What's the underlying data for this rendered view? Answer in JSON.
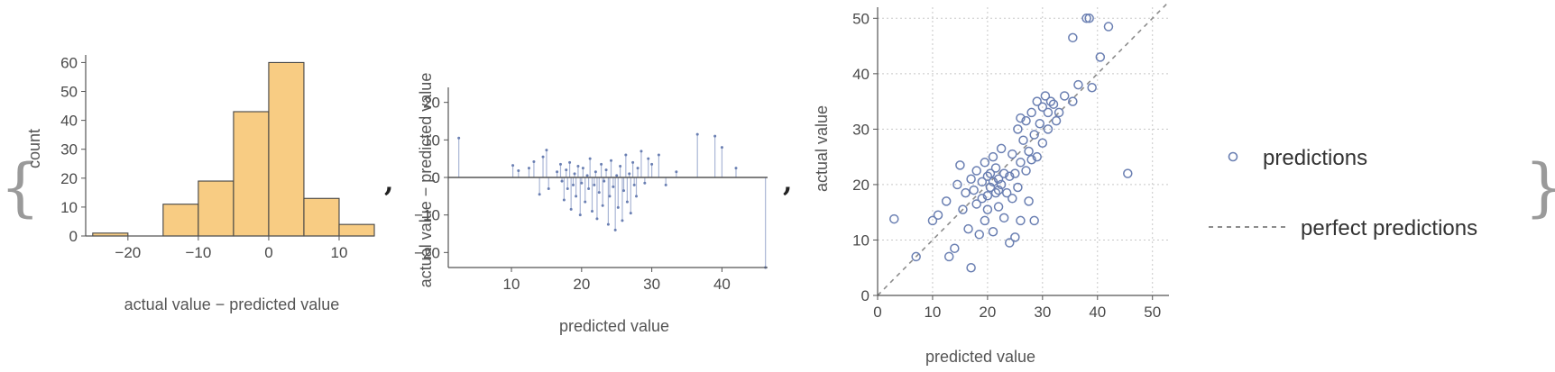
{
  "delimiters": {
    "open": "{",
    "close": "}",
    "comma": ","
  },
  "colors": {
    "bar_fill": "#f8cc83",
    "bar_stroke": "#444444",
    "point": "#6a7fb2",
    "stem": "#aab6d6",
    "axis": "#555555",
    "grid": "#c8c8c8",
    "diagonal": "#8c8c8c"
  },
  "chart_data": [
    {
      "type": "bar",
      "chart_kind": "histogram",
      "xlabel": "actual value − predicted value",
      "ylabel": "count",
      "bin_edges": [
        -25,
        -20,
        -15,
        -10,
        -5,
        0,
        5,
        10,
        15
      ],
      "values": [
        1,
        0,
        11,
        19,
        43,
        60,
        13,
        4
      ],
      "xlim": [
        -26,
        15
      ],
      "ylim": [
        0,
        62
      ],
      "xticks": [
        -20,
        -10,
        0,
        10
      ],
      "yticks": [
        0,
        10,
        20,
        30,
        40,
        50,
        60
      ],
      "grid": false
    },
    {
      "type": "scatter",
      "chart_kind": "residual stem plot",
      "xlabel": "predicted value",
      "ylabel": "actual value − predicted value",
      "xlim": [
        1,
        46.5
      ],
      "ylim": [
        -24,
        24
      ],
      "xticks": [
        10,
        20,
        30,
        40
      ],
      "yticks": [
        -20,
        -10,
        0,
        10,
        20
      ],
      "grid": false,
      "points": [
        [
          2.5,
          10.5
        ],
        [
          10.2,
          3.2
        ],
        [
          11.0,
          1.8
        ],
        [
          12.5,
          2.5
        ],
        [
          13.2,
          4.2
        ],
        [
          14.0,
          -4.5
        ],
        [
          14.5,
          5.5
        ],
        [
          15.0,
          7.3
        ],
        [
          15.3,
          -3.0
        ],
        [
          16.5,
          1.5
        ],
        [
          17.0,
          3.5
        ],
        [
          17.2,
          -1.0
        ],
        [
          17.5,
          -6.0
        ],
        [
          17.8,
          2.0
        ],
        [
          18.0,
          -3.0
        ],
        [
          18.3,
          4.0
        ],
        [
          18.5,
          -8.5
        ],
        [
          18.8,
          -2.0
        ],
        [
          19.0,
          1.0
        ],
        [
          19.2,
          -5.0
        ],
        [
          19.5,
          3.0
        ],
        [
          19.8,
          -10.0
        ],
        [
          20.0,
          -1.5
        ],
        [
          20.2,
          2.5
        ],
        [
          20.5,
          -6.5
        ],
        [
          20.8,
          0.5
        ],
        [
          21.0,
          -3.0
        ],
        [
          21.2,
          5.0
        ],
        [
          21.5,
          -9.0
        ],
        [
          21.8,
          -2.0
        ],
        [
          22.0,
          1.5
        ],
        [
          22.2,
          -11.0
        ],
        [
          22.5,
          -4.0
        ],
        [
          22.8,
          3.5
        ],
        [
          23.0,
          -7.5
        ],
        [
          23.2,
          -1.0
        ],
        [
          23.5,
          2.0
        ],
        [
          23.8,
          -12.5
        ],
        [
          24.0,
          -5.0
        ],
        [
          24.2,
          4.5
        ],
        [
          24.5,
          -2.5
        ],
        [
          24.8,
          -14.0
        ],
        [
          25.0,
          0.5
        ],
        [
          25.2,
          -8.0
        ],
        [
          25.5,
          3.0
        ],
        [
          25.8,
          -11.5
        ],
        [
          26.0,
          -3.5
        ],
        [
          26.3,
          6.0
        ],
        [
          26.5,
          -6.5
        ],
        [
          26.8,
          1.0
        ],
        [
          27.0,
          -9.5
        ],
        [
          27.3,
          4.0
        ],
        [
          27.5,
          -2.0
        ],
        [
          27.8,
          -5.0
        ],
        [
          28.0,
          2.5
        ],
        [
          28.5,
          7.0
        ],
        [
          29.0,
          -1.5
        ],
        [
          29.5,
          5.0
        ],
        [
          30.0,
          3.5
        ],
        [
          31.0,
          6.0
        ],
        [
          32.0,
          -2.0
        ],
        [
          33.5,
          1.5
        ],
        [
          36.5,
          11.5
        ],
        [
          39.0,
          11.0
        ],
        [
          40.0,
          8.0
        ],
        [
          42.0,
          2.5
        ],
        [
          46.2,
          -24.0
        ]
      ]
    },
    {
      "type": "scatter",
      "xlabel": "predicted value",
      "ylabel": "actual value",
      "xlim": [
        0,
        53
      ],
      "ylim": [
        0,
        52
      ],
      "xticks": [
        0,
        10,
        20,
        30,
        40,
        50
      ],
      "yticks": [
        0,
        10,
        20,
        30,
        40,
        50
      ],
      "grid": true,
      "legend_position": "right",
      "series": [
        {
          "name": "predictions",
          "points": [
            [
              3.0,
              13.8
            ],
            [
              7.0,
              7.0
            ],
            [
              10.0,
              13.5
            ],
            [
              11.0,
              14.5
            ],
            [
              12.5,
              17.0
            ],
            [
              13.0,
              7.0
            ],
            [
              14.0,
              8.5
            ],
            [
              14.5,
              20.0
            ],
            [
              15.0,
              23.5
            ],
            [
              15.5,
              15.5
            ],
            [
              16.0,
              18.5
            ],
            [
              16.5,
              12.0
            ],
            [
              17.0,
              21.0
            ],
            [
              17.0,
              5.0
            ],
            [
              17.5,
              19.0
            ],
            [
              18.0,
              16.5
            ],
            [
              18.0,
              22.5
            ],
            [
              18.5,
              11.0
            ],
            [
              19.0,
              20.5
            ],
            [
              19.0,
              17.5
            ],
            [
              19.5,
              24.0
            ],
            [
              19.5,
              13.5
            ],
            [
              20.0,
              21.5
            ],
            [
              20.0,
              18.0
            ],
            [
              20.0,
              15.5
            ],
            [
              20.5,
              22.0
            ],
            [
              20.5,
              19.5
            ],
            [
              21.0,
              25.0
            ],
            [
              21.0,
              20.5
            ],
            [
              21.0,
              11.5
            ],
            [
              21.5,
              18.5
            ],
            [
              21.5,
              23.0
            ],
            [
              22.0,
              21.0
            ],
            [
              22.0,
              16.0
            ],
            [
              22.0,
              19.0
            ],
            [
              22.5,
              26.5
            ],
            [
              22.5,
              20.0
            ],
            [
              23.0,
              22.0
            ],
            [
              23.0,
              14.0
            ],
            [
              23.5,
              18.5
            ],
            [
              24.0,
              21.5
            ],
            [
              24.0,
              9.5
            ],
            [
              24.5,
              25.5
            ],
            [
              24.5,
              17.5
            ],
            [
              25.0,
              10.5
            ],
            [
              25.0,
              22.0
            ],
            [
              25.5,
              30.0
            ],
            [
              25.5,
              19.5
            ],
            [
              26.0,
              24.0
            ],
            [
              26.0,
              32.0
            ],
            [
              26.0,
              13.5
            ],
            [
              26.5,
              28.0
            ],
            [
              27.0,
              22.5
            ],
            [
              27.0,
              31.5
            ],
            [
              27.5,
              26.0
            ],
            [
              27.5,
              17.0
            ],
            [
              28.0,
              24.5
            ],
            [
              28.0,
              33.0
            ],
            [
              28.5,
              29.0
            ],
            [
              28.5,
              13.5
            ],
            [
              29.0,
              35.0
            ],
            [
              29.0,
              25.0
            ],
            [
              29.5,
              31.0
            ],
            [
              30.0,
              34.0
            ],
            [
              30.0,
              27.5
            ],
            [
              30.5,
              36.0
            ],
            [
              31.0,
              33.0
            ],
            [
              31.0,
              30.0
            ],
            [
              31.5,
              35.0
            ],
            [
              32.0,
              34.5
            ],
            [
              32.5,
              31.5
            ],
            [
              33.0,
              33.0
            ],
            [
              34.0,
              36.0
            ],
            [
              35.5,
              35.0
            ],
            [
              35.5,
              46.5
            ],
            [
              36.5,
              38.0
            ],
            [
              38.0,
              50.0
            ],
            [
              38.5,
              50.0
            ],
            [
              39.0,
              37.5
            ],
            [
              40.5,
              43.0
            ],
            [
              42.0,
              48.5
            ],
            [
              45.5,
              22.0
            ]
          ]
        },
        {
          "name": "perfect predictions",
          "line": [
            [
              0,
              0
            ],
            [
              53,
              53
            ]
          ],
          "style": "dashed"
        }
      ]
    }
  ]
}
